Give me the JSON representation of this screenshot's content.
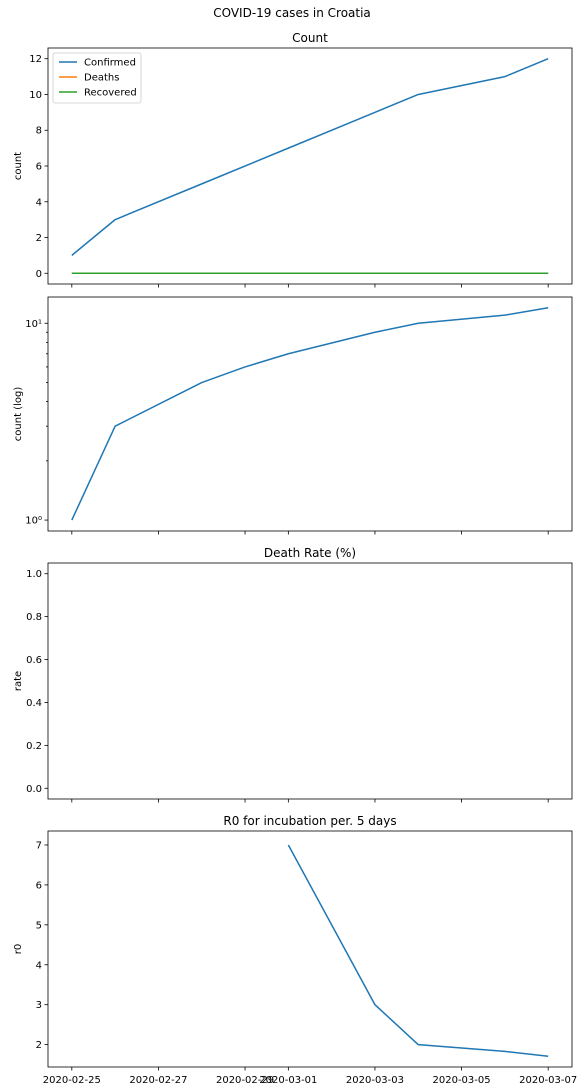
{
  "suptitle": "COVID-19 cases in Croatia",
  "x_dates": [
    "2020-02-25",
    "2020-02-26",
    "2020-02-27",
    "2020-02-28",
    "2020-02-29",
    "2020-03-01",
    "2020-03-02",
    "2020-03-03",
    "2020-03-04",
    "2020-03-05",
    "2020-03-06",
    "2020-03-07"
  ],
  "x_tick_labels": [
    "2020-02-25",
    "2020-02-27",
    "2020-02-29",
    "2020-03-01",
    "2020-03-03",
    "2020-03-05",
    "2020-03-07"
  ],
  "colors": {
    "confirmed": "#1f77b4",
    "deaths": "#ff7f0e",
    "recovered": "#2ca02c"
  },
  "chart_data": [
    {
      "type": "line",
      "title": "Count",
      "ylabel": "count",
      "ylim": [
        -0.6,
        12.6
      ],
      "yticks": [
        0,
        2,
        4,
        6,
        8,
        10,
        12
      ],
      "legend": {
        "placement": "upper-left",
        "entries": [
          "Confirmed",
          "Deaths",
          "Recovered"
        ]
      },
      "series": [
        {
          "name": "Confirmed",
          "color": "#1f77b4",
          "x": [
            "2020-02-25",
            "2020-02-26",
            "2020-02-28",
            "2020-03-01",
            "2020-03-04",
            "2020-03-06",
            "2020-03-07"
          ],
          "y": [
            1,
            3,
            5,
            7,
            10,
            11,
            12
          ]
        },
        {
          "name": "Deaths",
          "color": "#ff7f0e",
          "x": [
            "2020-02-25",
            "2020-03-07"
          ],
          "y": [
            0,
            0
          ]
        },
        {
          "name": "Recovered",
          "color": "#2ca02c",
          "x": [
            "2020-02-25",
            "2020-03-07"
          ],
          "y": [
            0,
            0
          ]
        }
      ]
    },
    {
      "type": "line",
      "title": "",
      "ylabel": "count (log)",
      "yscale": "log",
      "ylim": [
        0.88,
        13.6
      ],
      "yticks": [
        1,
        10
      ],
      "ytick_labels": [
        "10⁰",
        "10¹"
      ],
      "series": [
        {
          "color": "#1f77b4",
          "x": [
            "2020-02-25",
            "2020-02-26",
            "2020-02-28",
            "2020-02-29",
            "2020-03-01",
            "2020-03-03",
            "2020-03-04",
            "2020-03-06",
            "2020-03-07"
          ],
          "y": [
            1,
            3,
            5,
            6,
            7,
            9,
            10,
            11,
            12
          ]
        }
      ]
    },
    {
      "type": "line",
      "title": "Death Rate (%)",
      "ylabel": "rate",
      "ylim": [
        -0.05,
        1.05
      ],
      "yticks": [
        0.0,
        0.2,
        0.4,
        0.6,
        0.8,
        1.0
      ],
      "ytick_labels": [
        "0.0",
        "0.2",
        "0.4",
        "0.6",
        "0.8",
        "1.0"
      ],
      "series": []
    },
    {
      "type": "line",
      "title": "R0 for incubation per. 5 days",
      "ylabel": "r0",
      "ylim": [
        1.44,
        7.35
      ],
      "yticks": [
        2,
        3,
        4,
        5,
        6,
        7
      ],
      "series": [
        {
          "color": "#1f77b4",
          "x": [
            "2020-03-01",
            "2020-03-03",
            "2020-03-04",
            "2020-03-06",
            "2020-03-07"
          ],
          "y": [
            7,
            3,
            2,
            1.83,
            1.71
          ]
        }
      ]
    }
  ]
}
